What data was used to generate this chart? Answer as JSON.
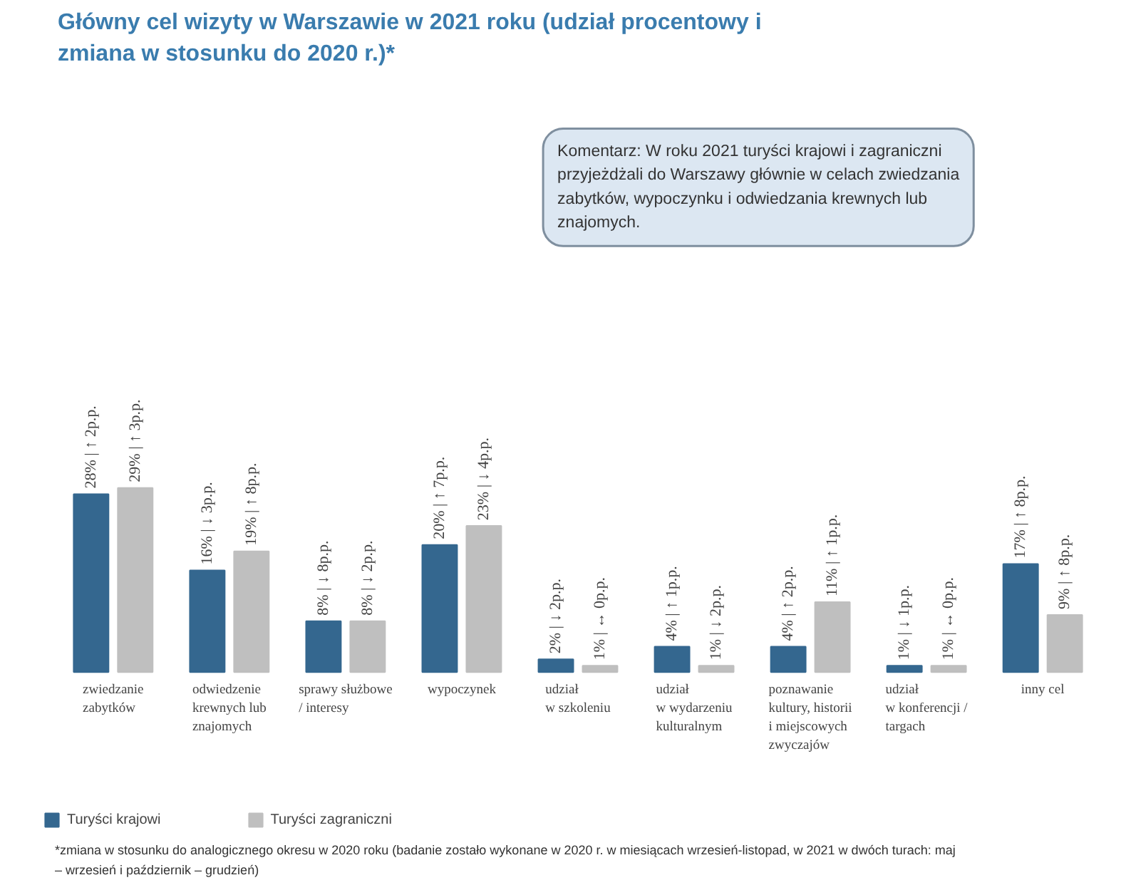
{
  "chart_data": {
    "type": "bar",
    "title": "Główny cel wizyty w Warszawie w 2021 roku (udział procentowy i zmiana w stosunku do 2020 r.)*",
    "categories": [
      "zwiedzanie\nzabytków",
      "odwiedzenie\nkrewnych lub\nznajomych",
      "sprawy służbowe\n/ interesy",
      "wypoczynek",
      "udział\nw szkoleniu",
      "udział\nw wydarzeniu\nkulturalnym",
      "poznawanie\nkultury, historii\ni miejscowych\nzwyczajów",
      "udział\nw konferencji /\ntargach",
      "inny cel"
    ],
    "series": [
      {
        "name": "Turyści krajowi",
        "color": "#34678f",
        "values": [
          28,
          16,
          8,
          20,
          2,
          4,
          4,
          1,
          17
        ],
        "value_labels": [
          "28% | ↑ 2p.p.",
          "16% | ↓ 3p.p.",
          "8% | ↓ 8p.p.",
          "20% | ↑ 7p.p.",
          "2% | ↓ 2p.p.",
          "4% | ↑ 1p.p.",
          "4% | ↑ 2p.p.",
          "1% | ↓ 1p.p.",
          "17% | ↑ 8p.p."
        ]
      },
      {
        "name": "Turyści zagraniczni",
        "color": "#bfbfbf",
        "values": [
          29,
          19,
          8,
          23,
          1,
          1,
          11,
          1,
          9
        ],
        "value_labels": [
          "29% | ↑ 3p.p.",
          "19% | ↑ 8p.p.",
          "8% | ↓ 2p.p.",
          "23% | ↓ 4p.p.",
          "1% | ↔ 0p.p.",
          "1% | ↓ 2p.p.",
          "11% | ↑ 1p.p.",
          "1% | ↔ 0p.p.",
          "9% | ↑ 8p.p."
        ]
      }
    ],
    "legend": "bottom left",
    "annotations": [
      "Komentarz: W roku 2021 turyści krajowi i zagraniczni przyjeżdżali do Warszawy głównie w celach zwiedzania zabytków, wypoczynku i odwiedzania krewnych lub znajomych.",
      "*zmiana w stosunku do analogicznego okresu w 2020 roku (badanie zostało wykonane w 2020 r. w miesiącach wrzesień-listopad, w 2021 w dwóch turach: maj – wrzesień i październik – grudzień)"
    ]
  }
}
